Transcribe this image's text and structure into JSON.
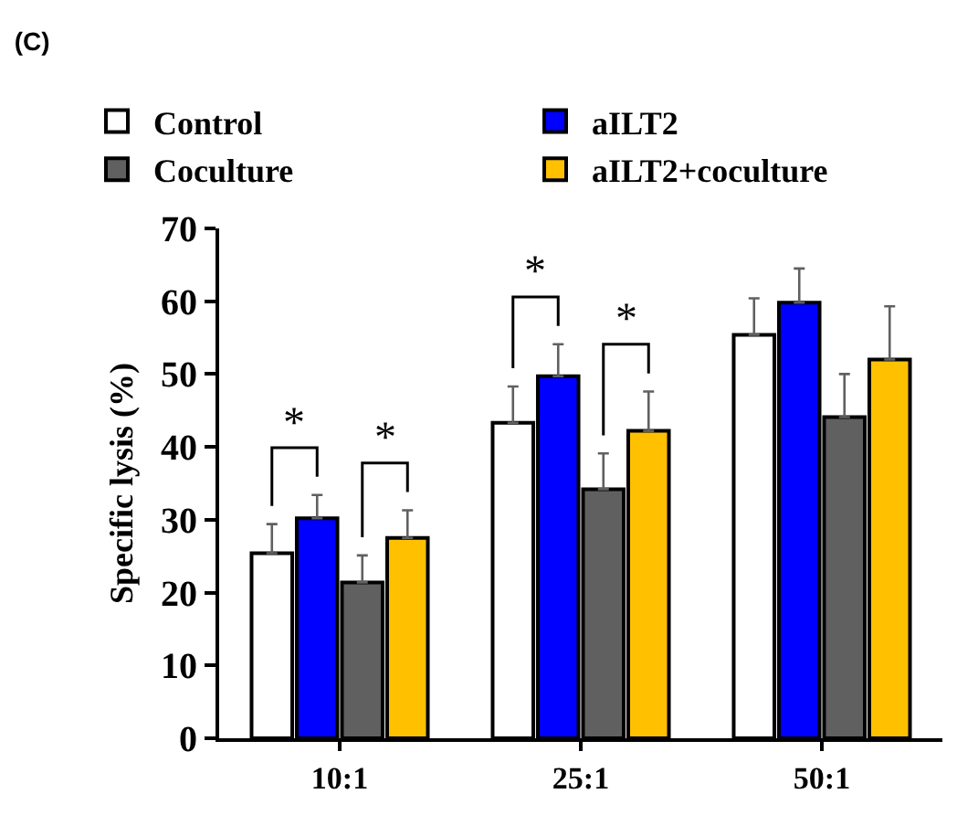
{
  "chart_data": {
    "type": "bar",
    "title": "(C)",
    "ylabel": "Specific lysis (%)",
    "categories": [
      "10:1",
      "25:1",
      "50:1"
    ],
    "series": [
      {
        "name": "Control",
        "color": "#ffffff",
        "values": [
          25.4,
          43.3,
          55.4
        ],
        "errors": [
          [
            25.4,
            29.4
          ],
          [
            43.3,
            48.3
          ],
          [
            55.4,
            60.4
          ]
        ]
      },
      {
        "name": "aILT2",
        "color": "#0000ff",
        "values": [
          30.2,
          49.7,
          59.8
        ],
        "errors": [
          [
            30.2,
            33.4
          ],
          [
            49.7,
            54.1
          ],
          [
            59.8,
            64.5
          ]
        ]
      },
      {
        "name": "Coculture",
        "color": "#606060",
        "values": [
          21.4,
          34.2,
          44.1
        ],
        "errors": [
          [
            21.4,
            25.1
          ],
          [
            34.2,
            39.1
          ],
          [
            44.1,
            50.0
          ]
        ]
      },
      {
        "name": "aILT2+coculture",
        "color": "#ffc000",
        "values": [
          27.5,
          42.2,
          52.0
        ],
        "errors": [
          [
            27.5,
            31.3
          ],
          [
            42.2,
            47.6
          ],
          [
            52.0,
            59.3
          ]
        ]
      }
    ],
    "annotations": [
      "*",
      "*",
      "*",
      "*"
    ],
    "ylim": [
      0,
      70
    ],
    "yticks": [
      0,
      10,
      20,
      30,
      40,
      50,
      60,
      70
    ],
    "grid": false,
    "legend": "top"
  }
}
